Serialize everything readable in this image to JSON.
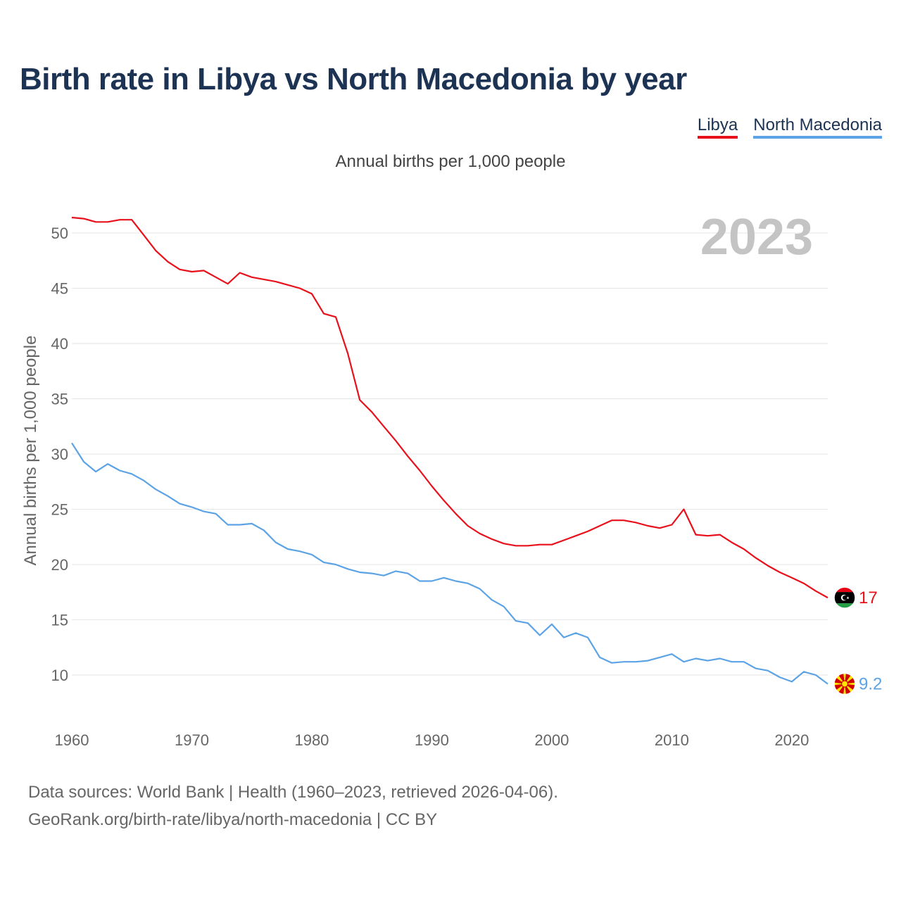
{
  "chart_data": {
    "type": "line",
    "title": "Birth rate in Libya vs North Macedonia by year",
    "subtitle": "Annual births per 1,000 people",
    "ylabel": "Annual births per 1,000 people",
    "xlabel": "",
    "year_watermark": "2023",
    "x": [
      1960,
      1961,
      1962,
      1963,
      1964,
      1965,
      1966,
      1967,
      1968,
      1969,
      1970,
      1971,
      1972,
      1973,
      1974,
      1975,
      1976,
      1977,
      1978,
      1979,
      1980,
      1981,
      1982,
      1983,
      1984,
      1985,
      1986,
      1987,
      1988,
      1989,
      1990,
      1991,
      1992,
      1993,
      1994,
      1995,
      1996,
      1997,
      1998,
      1999,
      2000,
      2001,
      2002,
      2003,
      2004,
      2005,
      2006,
      2007,
      2008,
      2009,
      2010,
      2011,
      2012,
      2013,
      2014,
      2015,
      2016,
      2017,
      2018,
      2019,
      2020,
      2021,
      2022,
      2023
    ],
    "xlim": [
      1960,
      2023
    ],
    "ylim": [
      7,
      53
    ],
    "x_ticks": [
      "1960",
      "1970",
      "1980",
      "1990",
      "2000",
      "2010",
      "2020"
    ],
    "y_ticks": [
      "10",
      "15",
      "20",
      "25",
      "30",
      "35",
      "40",
      "45",
      "50"
    ],
    "series": [
      {
        "name": "Libya",
        "color": "#e8111b",
        "end_label": "17",
        "flag_icon": "libya-flag-icon",
        "values": [
          51.4,
          51.3,
          51.0,
          51.0,
          51.2,
          51.2,
          49.8,
          48.4,
          47.4,
          46.7,
          46.5,
          46.6,
          46.0,
          45.4,
          46.4,
          46.0,
          45.8,
          45.6,
          45.3,
          45.0,
          44.5,
          42.7,
          42.4,
          39.1,
          34.9,
          33.8,
          32.5,
          31.2,
          29.8,
          28.5,
          27.1,
          25.8,
          24.6,
          23.5,
          22.8,
          22.3,
          21.9,
          21.7,
          21.7,
          21.8,
          21.8,
          22.2,
          22.6,
          23.0,
          23.5,
          24.0,
          24.0,
          23.8,
          23.5,
          23.3,
          23.6,
          25.0,
          22.7,
          22.6,
          22.7,
          22.0,
          21.4,
          20.6,
          19.9,
          19.3,
          18.8,
          18.3,
          17.6,
          17.0
        ]
      },
      {
        "name": "North Macedonia",
        "color": "#5ca3e6",
        "end_label": "9.2",
        "flag_icon": "north-macedonia-flag-icon",
        "values": [
          31.0,
          29.3,
          28.4,
          29.1,
          28.5,
          28.2,
          27.6,
          26.8,
          26.2,
          25.5,
          25.2,
          24.8,
          24.6,
          23.6,
          23.6,
          23.7,
          23.1,
          22.0,
          21.4,
          21.2,
          20.9,
          20.2,
          20.0,
          19.6,
          19.3,
          19.2,
          19.0,
          19.4,
          19.2,
          18.5,
          18.5,
          18.8,
          18.5,
          18.3,
          17.8,
          16.8,
          16.2,
          14.9,
          14.7,
          13.6,
          14.6,
          13.4,
          13.8,
          13.4,
          11.6,
          11.1,
          11.2,
          11.2,
          11.3,
          11.6,
          11.9,
          11.2,
          11.5,
          11.3,
          11.5,
          11.2,
          11.2,
          10.6,
          10.4,
          9.8,
          9.4,
          10.3,
          10.0,
          9.2
        ]
      }
    ]
  },
  "sources": {
    "line1": "Data sources: World Bank | Health (1960–2023, retrieved 2026-04-06).",
    "line2": "GeoRank.org/birth-rate/libya/north-macedonia | CC BY"
  }
}
